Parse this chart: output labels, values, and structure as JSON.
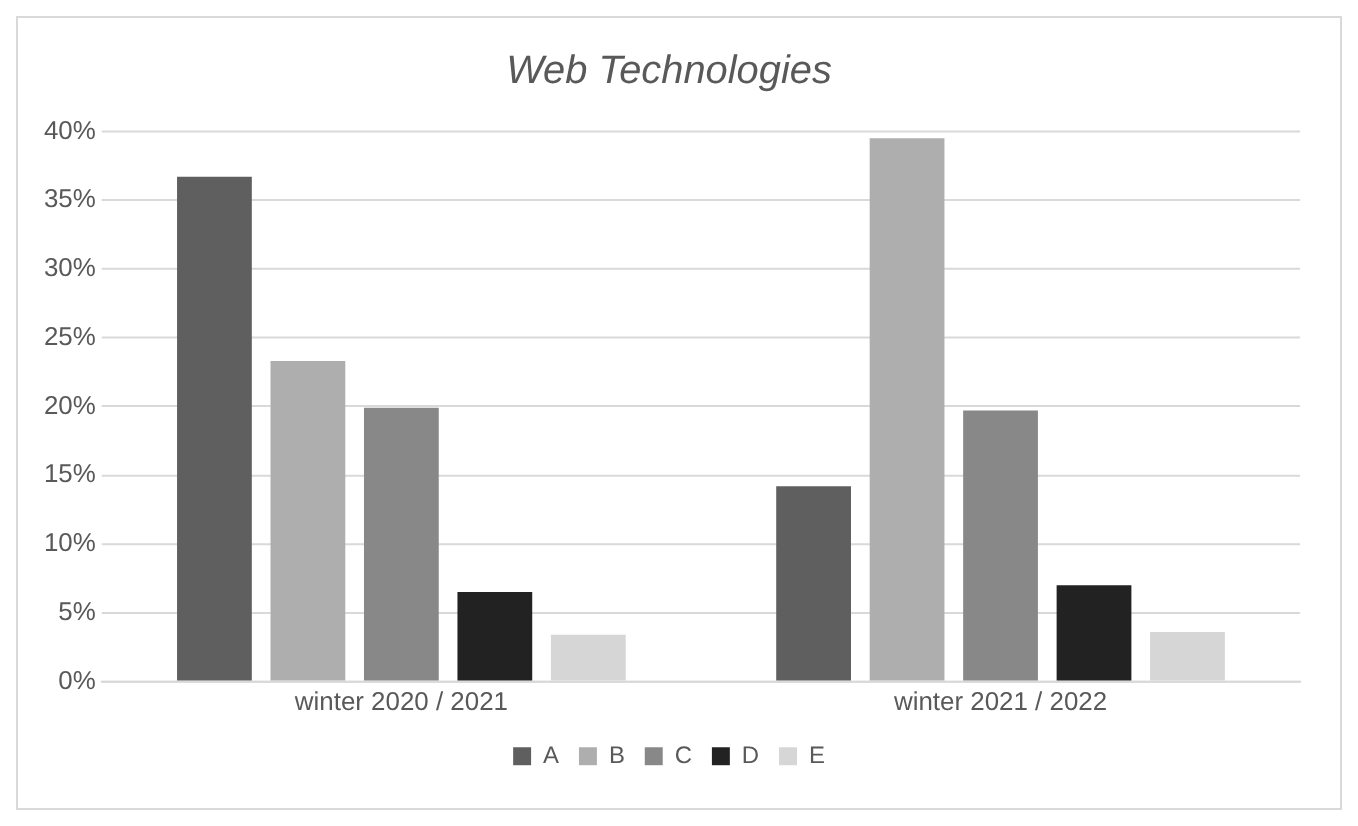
{
  "chart_data": {
    "type": "bar",
    "title": "Web Technologies",
    "categories": [
      "winter 2020 / 2021",
      "winter 2021 / 2022"
    ],
    "series": [
      {
        "name": "A",
        "color": "#5f5f5f",
        "values": [
          36.7,
          14.2
        ]
      },
      {
        "name": "B",
        "color": "#aeaeae",
        "values": [
          23.3,
          39.5
        ]
      },
      {
        "name": "C",
        "color": "#888888",
        "values": [
          19.9,
          19.7
        ]
      },
      {
        "name": "D",
        "color": "#222222",
        "values": [
          6.5,
          7.0
        ]
      },
      {
        "name": "E",
        "color": "#d6d6d6",
        "values": [
          3.4,
          3.6
        ]
      }
    ],
    "ylim": [
      0,
      40
    ],
    "yticks": [
      {
        "value": 0,
        "label": "0%"
      },
      {
        "value": 5,
        "label": "5%"
      },
      {
        "value": 10,
        "label": "10%"
      },
      {
        "value": 15,
        "label": "15%"
      },
      {
        "value": 20,
        "label": "20%"
      },
      {
        "value": 25,
        "label": "25%"
      },
      {
        "value": 30,
        "label": "30%"
      },
      {
        "value": 35,
        "label": "35%"
      },
      {
        "value": 40,
        "label": "40%"
      }
    ],
    "grid": "y",
    "legend": "bottom"
  }
}
